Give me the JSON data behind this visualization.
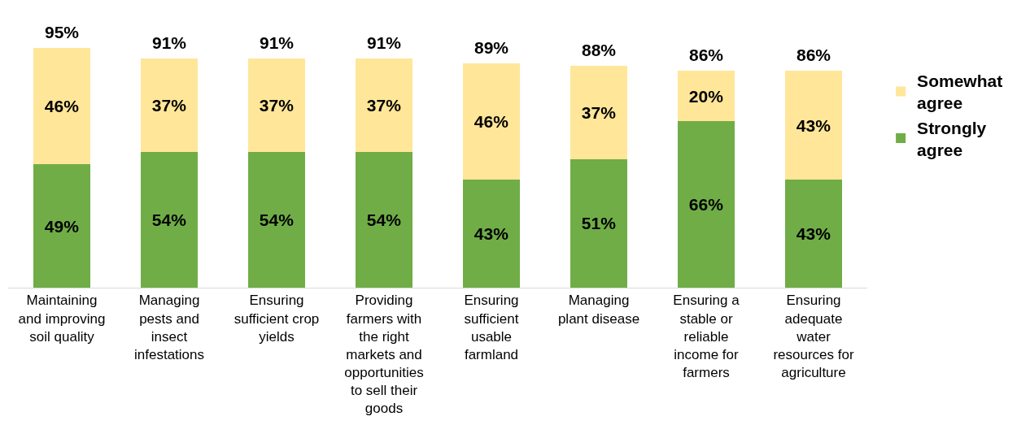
{
  "chart_data": {
    "type": "bar",
    "stacked": true,
    "categories": [
      "Maintaining\nand improving\nsoil quality",
      "Managing\npests and\ninsect\ninfestations",
      "Ensuring\nsufficient crop\nyields",
      "Providing\nfarmers with\nthe right\nmarkets and\nopportunities\nto sell their\ngoods",
      "Ensuring\nsufficient\nusable\nfarmland",
      "Managing\nplant disease",
      "Ensuring a\nstable or\nreliable\nincome for\nfarmers",
      "Ensuring\nadequate\nwater\nresources for\nagriculture"
    ],
    "series": [
      {
        "name": "Strongly agree",
        "color": "#70ad47",
        "values": [
          49,
          54,
          54,
          54,
          43,
          51,
          66,
          43
        ],
        "value_labels": [
          "49%",
          "54%",
          "54%",
          "54%",
          "43%",
          "51%",
          "66%",
          "43%"
        ]
      },
      {
        "name": "Somewhat agree",
        "color": "#ffe699",
        "values": [
          46,
          37,
          37,
          37,
          46,
          37,
          20,
          43
        ],
        "value_labels": [
          "46%",
          "37%",
          "37%",
          "37%",
          "46%",
          "37%",
          "20%",
          "43%"
        ]
      }
    ],
    "totals": [
      "95%",
      "91%",
      "91%",
      "91%",
      "89%",
      "88%",
      "86%",
      "86%"
    ],
    "legend": "right"
  }
}
